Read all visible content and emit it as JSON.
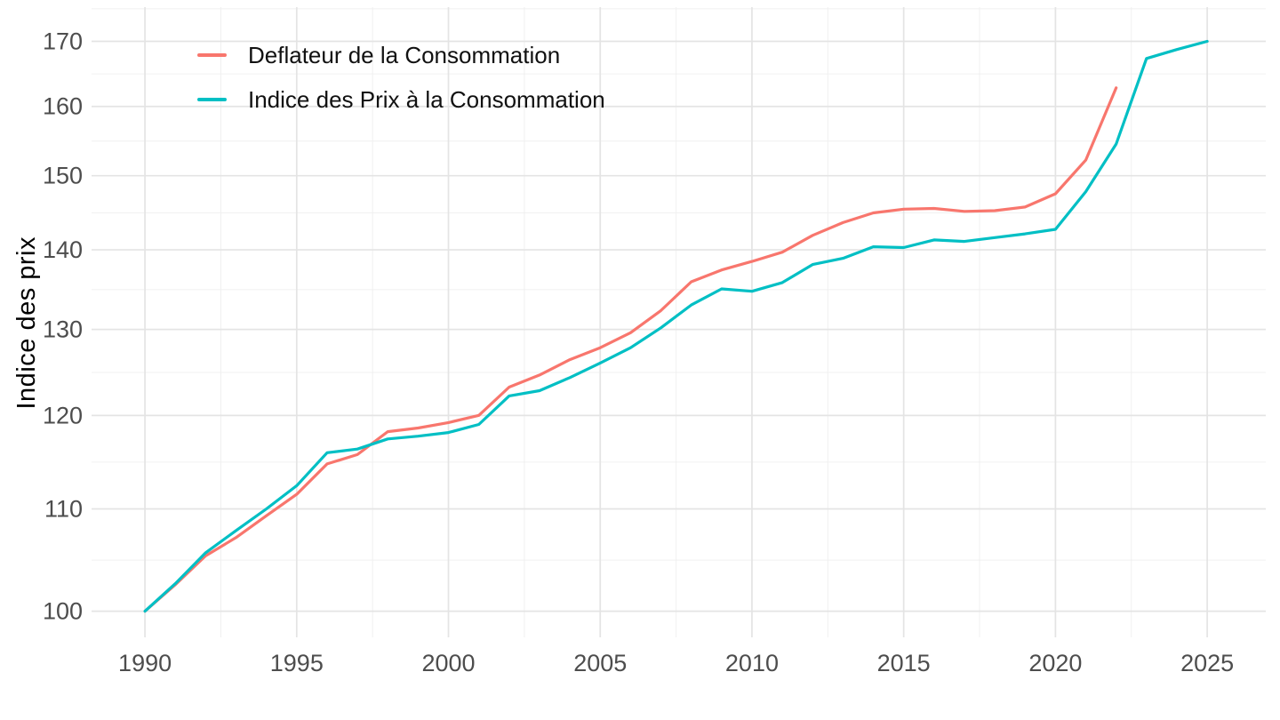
{
  "chart_data": {
    "type": "line",
    "title": "",
    "xlabel": "",
    "ylabel": "Indice des prix",
    "y_scale": "log10",
    "grid": true,
    "legend_position": "inside-top-left",
    "x_ticks": [
      1990,
      1995,
      2000,
      2005,
      2010,
      2015,
      2020,
      2025
    ],
    "y_ticks": [
      100,
      110,
      120,
      130,
      140,
      150,
      160,
      170
    ],
    "x_range": [
      1988.24,
      2026.93
    ],
    "y_range": [
      97.6,
      175.5
    ],
    "series": [
      {
        "name": "Deflateur de la Consommation",
        "color": "#F8766D",
        "x": [
          1990,
          1991,
          1992,
          1993,
          1994,
          1995,
          1996,
          1997,
          1998,
          1999,
          2000,
          2001,
          2002,
          2003,
          2004,
          2005,
          2006,
          2007,
          2008,
          2009,
          2010,
          2011,
          2012,
          2013,
          2014,
          2015,
          2016,
          2017,
          2018,
          2019,
          2020,
          2021,
          2022
        ],
        "values": [
          100.0,
          102.5,
          105.3,
          107.1,
          109.3,
          111.5,
          114.7,
          115.7,
          118.2,
          118.6,
          119.2,
          120.0,
          123.2,
          124.6,
          126.4,
          127.8,
          129.6,
          132.3,
          135.9,
          137.4,
          138.5,
          139.7,
          141.9,
          143.6,
          144.9,
          145.4,
          145.5,
          145.1,
          145.2,
          145.7,
          147.5,
          152.2,
          162.8
        ]
      },
      {
        "name": "Indice des Prix à la Consommation",
        "color": "#00BFC4",
        "x": [
          1990,
          1991,
          1992,
          1993,
          1994,
          1995,
          1996,
          1997,
          1998,
          1999,
          2000,
          2001,
          2002,
          2003,
          2004,
          2005,
          2006,
          2007,
          2008,
          2009,
          2010,
          2011,
          2012,
          2013,
          2014,
          2015,
          2016,
          2017,
          2018,
          2019,
          2020,
          2021,
          2022,
          2023,
          2024,
          2025
        ],
        "values": [
          100.0,
          102.6,
          105.6,
          107.8,
          110.0,
          112.4,
          115.9,
          116.3,
          117.4,
          117.7,
          118.1,
          119.0,
          122.2,
          122.8,
          124.3,
          126.0,
          127.8,
          130.2,
          133.0,
          135.0,
          134.7,
          135.8,
          138.1,
          138.9,
          140.4,
          140.3,
          141.3,
          141.1,
          141.6,
          142.1,
          142.7,
          147.8,
          154.5,
          167.3,
          168.7,
          170.0
        ]
      }
    ],
    "style": {
      "background": "#ffffff",
      "grid_major_color": "#e4e4e4",
      "grid_minor_color": "#f0f0f0",
      "tick_label_color": "#4d4d4d",
      "axis_title_color": "#000000",
      "legend_text_color": "#111111"
    }
  }
}
